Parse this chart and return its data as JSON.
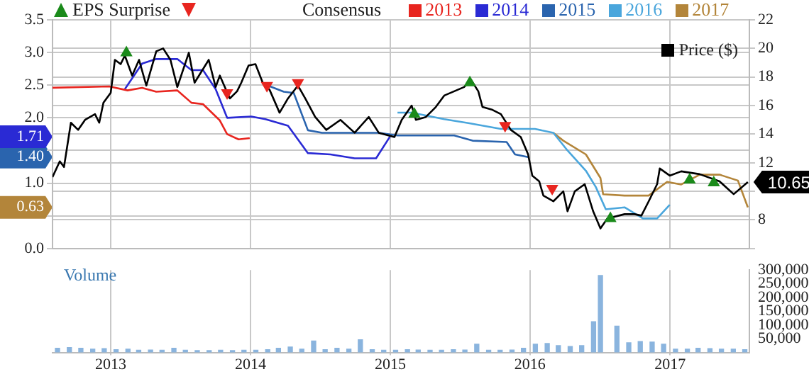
{
  "chart_data": [
    {
      "type": "line",
      "legend": "top",
      "legend_title": "Consensus",
      "grid": true,
      "tick_labels": "y",
      "xlim": [
        "2012-08-02",
        "2017-07-27"
      ],
      "xticks": [
        "2013",
        "2014",
        "2015",
        "2016",
        "2017"
      ],
      "ylim": [
        0,
        3.5
      ],
      "yticks": [
        {
          "value": 0,
          "label": "0.0"
        },
        {
          "value": 0.5,
          "label": null
        },
        {
          "value": 0.63,
          "label": "0.63"
        },
        {
          "value": 1,
          "label": "1.0"
        },
        {
          "value": 1.4,
          "label": "1.40"
        },
        {
          "value": 1.5,
          "label": null
        },
        {
          "value": 1.71,
          "label": "1.71"
        },
        {
          "value": 2,
          "label": "2.0"
        },
        2.5,
        {
          "value": 3,
          "label": "3.0"
        },
        3.5
      ],
      "y2lim": [
        6,
        22
      ],
      "y2ticks": [
        {
          "value": 6,
          "label": null
        },
        8,
        {
          "value": 10,
          "label": null
        },
        12,
        14,
        16,
        18,
        20,
        22
      ],
      "series": [
        {
          "name": "EPS Surprise",
          "type": "scatter",
          "marker": "triangle",
          "axis": "y2",
          "color": "#1a8a1a",
          "x": [
            "2013-02-11",
            "2015-03-05",
            "2015-07-28",
            "2016-07-29",
            "2017-02-21",
            "2017-04-25"
          ],
          "values": [
            19.7,
            15.4,
            17.6,
            8.1,
            10.8,
            10.6
          ]
        },
        {
          "type": "scatter",
          "marker": "triangle-down",
          "axis": "y2",
          "color": "#e8251f",
          "x": [
            "2013-11-01",
            "2014-02-13",
            "2014-05-05",
            "2015-10-28",
            "2016-02-28"
          ],
          "values": [
            16.9,
            17.4,
            17.6,
            14.6,
            10.2
          ]
        },
        {
          "name": "Price ($)",
          "axis": "y2",
          "color": "#000000",
          "x": [
            "2012-08-02",
            "2012-08-21",
            "2012-09-01",
            "2012-09-19",
            "2012-10-08",
            "2012-10-26",
            "2012-11-21",
            "2012-12-02",
            "2012-12-13",
            "2013-01-01",
            "2013-01-12",
            "2013-01-27",
            "2013-02-07",
            "2013-02-26",
            "2013-03-16",
            "2013-04-04",
            "2013-04-30",
            "2013-05-18",
            "2013-06-06",
            "2013-06-24",
            "2013-07-24",
            "2013-08-08",
            "2013-09-14",
            "2013-10-02",
            "2013-10-13",
            "2013-11-08",
            "2013-11-27",
            "2013-12-08",
            "2013-12-27",
            "2014-01-14",
            "2014-02-02",
            "2014-02-20",
            "2014-03-18",
            "2014-04-09",
            "2014-05-05",
            "2014-05-24",
            "2014-06-19",
            "2014-07-18",
            "2014-08-24",
            "2014-09-30",
            "2014-11-06",
            "2014-12-02",
            "2015-01-12",
            "2015-01-31",
            "2015-02-26",
            "2015-03-09",
            "2015-04-04",
            "2015-04-30",
            "2015-05-22",
            "2015-06-17",
            "2015-07-13",
            "2015-07-31",
            "2015-08-19",
            "2015-08-30",
            "2015-09-25",
            "2015-10-17",
            "2015-11-12",
            "2015-12-08",
            "2015-12-27",
            "2016-01-07",
            "2016-01-25",
            "2016-02-05",
            "2016-03-02",
            "2016-03-28",
            "2016-04-08",
            "2016-04-27",
            "2016-05-23",
            "2016-06-14",
            "2016-07-03",
            "2016-07-21",
            "2016-09-04",
            "2016-09-30",
            "2016-10-18",
            "2016-11-06",
            "2016-11-28",
            "2016-12-05",
            "2016-12-31",
            "2017-01-30",
            "2017-03-19",
            "2017-05-10",
            "2017-06-16",
            "2017-07-23"
          ],
          "values": [
            11.0,
            12.1,
            11.7,
            14.8,
            14.3,
            15.0,
            15.4,
            14.8,
            16.2,
            16.9,
            19.2,
            18.9,
            19.5,
            18.1,
            19.2,
            17.4,
            19.8,
            20.0,
            19.2,
            17.3,
            19.7,
            17.6,
            19.2,
            17.3,
            18.1,
            16.5,
            17.0,
            17.6,
            18.8,
            18.9,
            17.6,
            17.1,
            15.5,
            16.5,
            17.4,
            16.5,
            15.2,
            14.3,
            15.0,
            14.1,
            15.2,
            14.1,
            13.8,
            15.0,
            16.0,
            15.0,
            15.2,
            15.9,
            16.7,
            17.0,
            17.3,
            17.8,
            17.0,
            15.9,
            15.7,
            15.4,
            14.3,
            13.8,
            12.6,
            11.1,
            10.7,
            9.7,
            9.3,
            10.0,
            8.6,
            10.0,
            10.5,
            8.6,
            7.4,
            8.1,
            8.4,
            8.4,
            8.3,
            9.3,
            10.5,
            11.6,
            11.1,
            11.4,
            11.2,
            10.7,
            9.8,
            10.65
          ],
          "value_labels": [
            null,
            null,
            null,
            null,
            null,
            null,
            null,
            null,
            null,
            null,
            null,
            null,
            null,
            null,
            null,
            null,
            null,
            null,
            null,
            null,
            null,
            null,
            null,
            null,
            null,
            null,
            null,
            null,
            null,
            null,
            null,
            null,
            null,
            null,
            null,
            null,
            null,
            null,
            null,
            null,
            null,
            null,
            null,
            null,
            null,
            null,
            null,
            null,
            null,
            null,
            null,
            null,
            null,
            null,
            null,
            null,
            null,
            null,
            null,
            null,
            null,
            null,
            null,
            null,
            null,
            null,
            null,
            null,
            null,
            null,
            null,
            null,
            null,
            null,
            null,
            null,
            null,
            null,
            null,
            null,
            null,
            "10.65"
          ]
        },
        {
          "name": "2013",
          "color": "#e8251f",
          "x": [
            "2012-08-02",
            "2012-12-28",
            "2013-02-14",
            "2013-03-24",
            "2013-04-30",
            "2013-06-24",
            "2013-07-31",
            "2013-08-30",
            "2013-10-13",
            "2013-11-01",
            "2013-12-01",
            "2013-12-30"
          ],
          "values": [
            2.46,
            2.48,
            2.42,
            2.46,
            2.4,
            2.42,
            2.23,
            2.21,
            1.96,
            1.75,
            1.67,
            1.69
          ]
        },
        {
          "name": "2014",
          "color": "#2a2ad4",
          "x": [
            "2013-02-07",
            "2013-03-24",
            "2013-04-30",
            "2013-06-24",
            "2013-07-31",
            "2013-08-30",
            "2013-10-02",
            "2013-11-01",
            "2014-01-03",
            "2014-02-09",
            "2014-04-09",
            "2014-05-31",
            "2014-07-29",
            "2014-09-30",
            "2014-11-25",
            "2014-12-31"
          ],
          "values": [
            2.44,
            2.83,
            2.9,
            2.9,
            2.73,
            2.73,
            2.44,
            2.0,
            2.02,
            1.98,
            1.88,
            1.46,
            1.44,
            1.38,
            1.38,
            1.71
          ]
        },
        {
          "name": "2015",
          "color": "#2a64ae",
          "x": [
            "2014-02-13",
            "2014-03-29",
            "2014-04-24",
            "2014-05-31",
            "2014-07-07",
            "2014-12-02",
            "2015-01-20",
            "2015-02-26",
            "2015-06-17",
            "2015-08-04",
            "2015-11-01",
            "2015-11-23",
            "2015-12-27"
          ],
          "values": [
            2.5,
            2.4,
            2.38,
            1.81,
            1.77,
            1.77,
            1.73,
            1.73,
            1.73,
            1.65,
            1.63,
            1.44,
            1.4
          ]
        },
        {
          "name": "2016",
          "color": "#4aa6dc",
          "x": [
            "2015-01-20",
            "2015-02-26",
            "2015-05-22",
            "2015-07-24",
            "2015-10-17",
            "2016-01-14",
            "2016-03-02",
            "2016-04-08",
            "2016-05-26",
            "2016-06-21",
            "2016-07-17",
            "2016-09-04",
            "2016-10-22",
            "2016-11-28",
            "2016-12-31"
          ],
          "values": [
            2.08,
            2.08,
            1.98,
            1.92,
            1.83,
            1.83,
            1.77,
            1.5,
            1.19,
            0.94,
            0.6,
            0.63,
            0.46,
            0.46,
            0.67
          ]
        },
        {
          "name": "2017",
          "color": "#b3853a",
          "x": [
            "2016-03-02",
            "2016-03-28",
            "2016-05-26",
            "2016-07-03",
            "2016-07-10",
            "2016-09-04",
            "2016-11-06",
            "2016-12-24",
            "2017-01-30",
            "2017-03-19",
            "2017-05-10",
            "2017-06-27",
            "2017-07-23"
          ],
          "values": [
            1.77,
            1.65,
            1.44,
            1.08,
            0.83,
            0.81,
            0.81,
            1.02,
            0.98,
            1.13,
            1.13,
            1.04,
            0.63
          ]
        }
      ]
    },
    {
      "type": "bar",
      "title": "Volume",
      "grid": "x",
      "xlim": [
        "2012-08-02",
        "2017-07-27"
      ],
      "xticks": [
        "2013",
        "2014",
        "2015",
        "2016",
        "2017"
      ],
      "y2lim": [
        0,
        300000
      ],
      "y2ticks": [
        {
          "value": 50000,
          "label": "50,000"
        },
        {
          "value": 100000,
          "label": "100,000"
        },
        {
          "value": 150000,
          "label": "150,000"
        },
        {
          "value": 200000,
          "label": "200,000"
        },
        {
          "value": 250000,
          "label": "250,000"
        },
        {
          "value": 300000,
          "label": "300,000"
        }
      ],
      "series": [
        {
          "axis": "y2",
          "color": "#8ab4de",
          "x": [
            "2012-08-15",
            "2012-09-15",
            "2012-10-15",
            "2012-11-15",
            "2012-12-15",
            "2013-01-15",
            "2013-02-15",
            "2013-03-15",
            "2013-04-15",
            "2013-05-15",
            "2013-06-15",
            "2013-07-15",
            "2013-08-15",
            "2013-09-15",
            "2013-10-15",
            "2013-11-15",
            "2013-12-15",
            "2014-01-15",
            "2014-02-15",
            "2014-03-15",
            "2014-04-15",
            "2014-05-15",
            "2014-06-15",
            "2014-07-15",
            "2014-08-15",
            "2014-09-15",
            "2014-10-15",
            "2014-11-15",
            "2014-12-15",
            "2015-01-15",
            "2015-02-15",
            "2015-03-15",
            "2015-04-15",
            "2015-05-15",
            "2015-06-15",
            "2015-07-15",
            "2015-08-15",
            "2015-09-15",
            "2015-10-15",
            "2015-11-15",
            "2015-12-15",
            "2016-01-15",
            "2016-02-15",
            "2016-03-15",
            "2016-04-15",
            "2016-05-15",
            "2016-06-15",
            "2016-07-03",
            "2016-08-15",
            "2016-09-15",
            "2016-10-15",
            "2016-11-15",
            "2016-12-15",
            "2017-01-15",
            "2017-02-15",
            "2017-03-15",
            "2017-04-15",
            "2017-05-15",
            "2017-06-15",
            "2017-07-15"
          ],
          "values": [
            15000,
            18000,
            15000,
            12000,
            14000,
            10000,
            12000,
            8000,
            9000,
            8000,
            15000,
            8000,
            7000,
            7000,
            8000,
            7000,
            8000,
            8000,
            10000,
            15000,
            20000,
            12000,
            42000,
            10000,
            15000,
            12000,
            46000,
            10000,
            8000,
            8000,
            10000,
            9000,
            8000,
            8000,
            10000,
            9000,
            30000,
            8000,
            8000,
            9000,
            15000,
            30000,
            33000,
            25000,
            22000,
            25000,
            112000,
            280000,
            96000,
            35000,
            40000,
            38000,
            30000,
            12000,
            12000,
            15000,
            14000,
            12000,
            12000,
            10000
          ]
        }
      ]
    }
  ]
}
